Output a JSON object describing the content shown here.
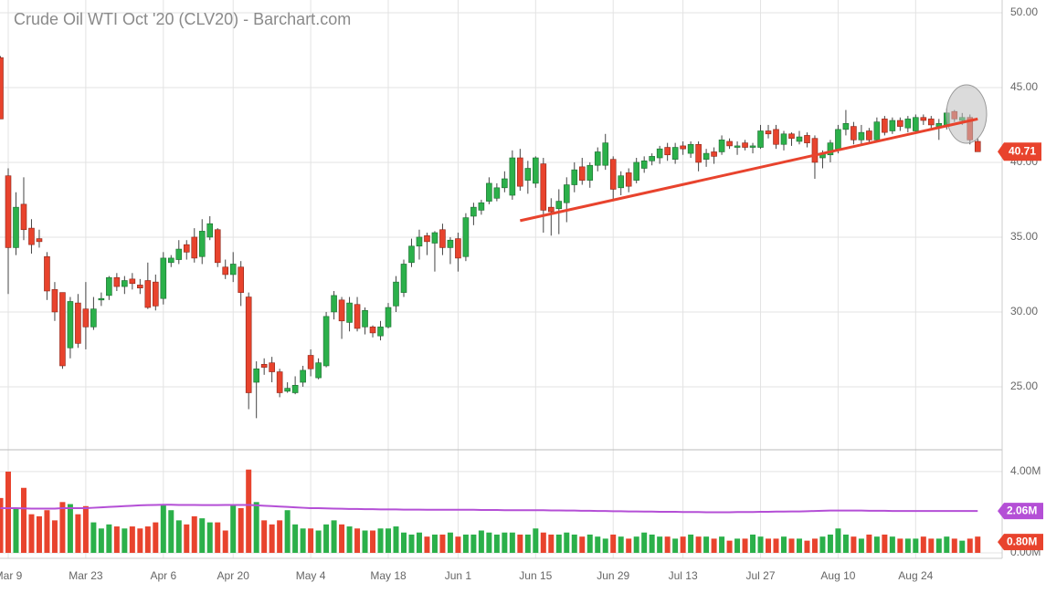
{
  "chart_data": {
    "type": "candlestick",
    "title": "Crude Oil WTI Oct '20 (CLV20) - Barchart.com",
    "categories": [
      null,
      "Mar 9",
      null,
      null,
      null,
      null,
      null,
      null,
      null,
      null,
      null,
      "Mar 23",
      null,
      null,
      null,
      null,
      null,
      null,
      null,
      null,
      null,
      "Apr 6",
      null,
      null,
      null,
      null,
      null,
      null,
      null,
      null,
      "Apr 20",
      null,
      null,
      null,
      null,
      null,
      null,
      null,
      null,
      null,
      "May 4",
      null,
      null,
      null,
      null,
      null,
      null,
      null,
      null,
      null,
      "May 18",
      null,
      null,
      null,
      null,
      null,
      null,
      null,
      null,
      "Jun 1",
      null,
      null,
      null,
      null,
      null,
      null,
      null,
      null,
      null,
      "Jun 15",
      null,
      null,
      null,
      null,
      null,
      null,
      null,
      null,
      null,
      "Jun 29",
      null,
      null,
      null,
      null,
      null,
      null,
      null,
      null,
      "Jul 13",
      null,
      null,
      null,
      null,
      null,
      null,
      null,
      null,
      null,
      "Jul 27",
      null,
      null,
      null,
      null,
      null,
      null,
      null,
      null,
      null,
      "Aug 10",
      null,
      null,
      null,
      null,
      null,
      null,
      null,
      null,
      null,
      "Aug 24",
      null,
      null,
      null,
      null,
      null,
      null,
      null,
      null
    ],
    "open": [
      47.0,
      39.1,
      34.3,
      37.2,
      35.6,
      34.9,
      33.7,
      31.5,
      31.3,
      27.6,
      30.6,
      30.2,
      29.0,
      30.8,
      31.1,
      32.3,
      31.7,
      32.2,
      31.8,
      32.1,
      32.0,
      30.9,
      33.3,
      33.5,
      34.5,
      35.0,
      33.7,
      35.0,
      35.5,
      33.0,
      32.5,
      33.0,
      31.0,
      25.3,
      26.5,
      26.6,
      26.0,
      24.7,
      24.6,
      25.3,
      27.1,
      25.6,
      26.4,
      30.0,
      30.8,
      29.3,
      30.5,
      29.0,
      29.0,
      28.4,
      29.0,
      30.4,
      31.3,
      33.3,
      34.4,
      35.1,
      34.6,
      35.5,
      34.3,
      34.9,
      33.7,
      36.4,
      36.8,
      37.4,
      37.6,
      38.3,
      37.8,
      40.3,
      38.8,
      38.6,
      39.9,
      37.0,
      36.9,
      37.3,
      38.5,
      39.7,
      38.8,
      39.8,
      39.8,
      40.2,
      38.3,
      39.3,
      38.8,
      39.6,
      40.1,
      40.3,
      41.0,
      40.2,
      41.1,
      40.6,
      41.2,
      40.2,
      40.7,
      40.7,
      41.4,
      41.0,
      41.3,
      41.0,
      41.0,
      42.1,
      42.2,
      41.2,
      41.9,
      41.4,
      41.8,
      41.6,
      40.3,
      40.5,
      40.9,
      42.2,
      42.4,
      41.5,
      42.1,
      41.5,
      42.9,
      42.1,
      42.8,
      42.3,
      42.1,
      43.0,
      42.9,
      42.4,
      42.4,
      43.4,
      42.8,
      43.0,
      41.4
    ],
    "high": [
      47.1,
      39.6,
      38.0,
      39.0,
      36.2,
      35.5,
      34.0,
      32.0,
      31.3,
      31.0,
      31.2,
      32.0,
      31.0,
      31.3,
      32.4,
      32.6,
      32.4,
      32.6,
      32.2,
      33.3,
      32.5,
      34.0,
      33.8,
      34.8,
      34.8,
      35.6,
      36.2,
      36.4,
      35.6,
      33.5,
      34.0,
      33.4,
      31.3,
      26.7,
      26.9,
      27.0,
      26.2,
      25.3,
      25.7,
      26.4,
      27.5,
      26.9,
      30.0,
      31.4,
      31.0,
      31.0,
      31.0,
      30.3,
      29.1,
      29.4,
      30.6,
      32.4,
      33.5,
      34.9,
      35.5,
      35.3,
      35.4,
      35.9,
      35.0,
      35.3,
      36.6,
      37.3,
      37.5,
      39.0,
      38.6,
      39.4,
      40.8,
      40.9,
      40.1,
      40.4,
      40.3,
      37.6,
      38.2,
      39.0,
      40.0,
      40.3,
      40.0,
      41.0,
      41.9,
      40.4,
      39.4,
      39.6,
      40.3,
      40.4,
      40.6,
      41.1,
      41.3,
      41.3,
      41.4,
      41.4,
      41.4,
      40.9,
      41.0,
      41.8,
      41.6,
      41.4,
      41.5,
      41.3,
      42.5,
      42.5,
      42.5,
      42.1,
      42.0,
      42.1,
      42.0,
      41.8,
      40.8,
      41.5,
      42.5,
      43.5,
      42.7,
      42.5,
      42.3,
      43.0,
      43.1,
      43.0,
      43.0,
      43.1,
      43.2,
      43.2,
      43.1,
      42.9,
      43.6,
      43.5,
      43.3,
      43.2,
      41.6
    ],
    "low": [
      42.9,
      31.2,
      33.8,
      34.8,
      33.9,
      34.3,
      30.8,
      29.4,
      26.2,
      26.9,
      27.6,
      27.5,
      28.8,
      30.4,
      30.8,
      31.4,
      31.2,
      31.5,
      31.2,
      30.2,
      30.1,
      30.5,
      33.0,
      33.2,
      33.5,
      33.3,
      33.2,
      34.8,
      33.0,
      32.2,
      32.0,
      30.4,
      23.5,
      22.9,
      25.8,
      25.3,
      24.3,
      24.6,
      24.5,
      25.0,
      25.7,
      25.5,
      26.3,
      29.5,
      28.2,
      28.7,
      28.7,
      28.5,
      28.3,
      28.1,
      28.9,
      30.0,
      31.0,
      33.0,
      33.5,
      33.8,
      32.7,
      33.8,
      33.2,
      32.7,
      33.4,
      35.8,
      36.5,
      37.2,
      37.4,
      38.0,
      37.5,
      38.1,
      37.9,
      38.3,
      35.3,
      35.1,
      35.2,
      36.0,
      38.0,
      38.5,
      38.3,
      39.4,
      39.5,
      37.4,
      37.8,
      38.0,
      38.6,
      39.3,
      39.8,
      39.9,
      40.1,
      39.9,
      40.5,
      40.3,
      39.4,
      39.7,
      39.9,
      40.5,
      40.9,
      40.5,
      40.8,
      40.6,
      40.9,
      41.6,
      40.9,
      40.8,
      41.1,
      41.2,
      41.0,
      38.9,
      39.6,
      40.0,
      40.6,
      41.8,
      41.2,
      41.2,
      41.3,
      41.4,
      41.8,
      41.9,
      42.1,
      42.0,
      42.0,
      42.5,
      42.3,
      41.5,
      42.2,
      42.7,
      42.5,
      41.2,
      40.7
    ],
    "close": [
      42.9,
      34.3,
      37.0,
      35.5,
      34.5,
      34.7,
      31.4,
      30.0,
      26.4,
      30.7,
      27.9,
      29.0,
      30.2,
      30.9,
      32.3,
      31.7,
      32.1,
      31.9,
      31.6,
      30.3,
      30.4,
      33.6,
      33.6,
      34.2,
      34.0,
      33.6,
      35.4,
      35.9,
      33.3,
      32.5,
      33.2,
      31.3,
      24.6,
      26.2,
      26.3,
      26.0,
      24.6,
      24.9,
      25.1,
      26.1,
      26.2,
      26.6,
      29.7,
      31.1,
      29.4,
      30.6,
      28.9,
      30.1,
      28.6,
      29.0,
      30.3,
      32.0,
      33.2,
      34.4,
      35.0,
      34.7,
      35.3,
      34.3,
      34.8,
      33.6,
      36.3,
      37.0,
      37.3,
      38.6,
      38.3,
      38.9,
      40.3,
      38.4,
      39.6,
      40.3,
      36.8,
      36.7,
      37.4,
      38.5,
      39.5,
      38.8,
      39.8,
      40.7,
      41.3,
      38.2,
      39.1,
      38.4,
      40.0,
      40.1,
      40.4,
      40.9,
      40.5,
      41.0,
      40.9,
      41.2,
      40.0,
      40.6,
      40.4,
      41.5,
      41.1,
      41.1,
      41.0,
      41.1,
      42.1,
      41.9,
      41.2,
      41.9,
      41.6,
      41.7,
      41.3,
      40.0,
      40.6,
      41.3,
      42.2,
      42.6,
      41.5,
      42.0,
      41.5,
      42.7,
      42.0,
      42.8,
      42.4,
      42.9,
      43.0,
      42.8,
      42.5,
      42.6,
      43.3,
      42.9,
      43.0,
      41.5,
      40.71
    ],
    "volume": [
      2.7,
      4.0,
      2.2,
      3.2,
      1.9,
      1.8,
      2.1,
      1.6,
      2.5,
      2.4,
      1.9,
      2.3,
      1.5,
      1.2,
      1.4,
      1.3,
      1.2,
      1.3,
      1.2,
      1.3,
      1.5,
      2.4,
      2.1,
      1.6,
      1.4,
      1.8,
      1.7,
      1.5,
      1.5,
      1.1,
      2.4,
      2.2,
      4.1,
      2.5,
      1.6,
      1.4,
      1.6,
      2.1,
      1.4,
      1.2,
      1.2,
      1.1,
      1.4,
      1.6,
      1.4,
      1.3,
      1.2,
      1.1,
      1.1,
      1.2,
      1.2,
      1.3,
      1.0,
      0.9,
      1.0,
      0.8,
      0.9,
      0.9,
      1.0,
      0.8,
      0.9,
      0.9,
      1.1,
      1.0,
      0.9,
      1.0,
      1.0,
      0.9,
      0.9,
      1.2,
      1.0,
      0.9,
      0.9,
      1.0,
      0.9,
      0.8,
      0.9,
      0.8,
      0.7,
      0.9,
      0.8,
      0.7,
      0.8,
      1.0,
      0.9,
      0.8,
      0.8,
      0.7,
      0.8,
      0.9,
      0.8,
      0.8,
      0.7,
      0.8,
      0.6,
      0.7,
      0.7,
      0.9,
      0.8,
      0.7,
      0.7,
      0.8,
      0.7,
      0.7,
      0.6,
      0.7,
      0.8,
      0.9,
      1.2,
      0.9,
      0.8,
      0.7,
      0.9,
      0.8,
      0.9,
      0.8,
      0.7,
      0.7,
      0.7,
      0.8,
      0.7,
      0.7,
      0.8,
      0.7,
      0.6,
      0.7,
      0.8
    ],
    "volume_last_label": "0.80M",
    "volume_ma": [
      2.2,
      2.2,
      2.2,
      2.19,
      2.18,
      2.18,
      2.18,
      2.18,
      2.2,
      2.2,
      2.2,
      2.2,
      2.22,
      2.24,
      2.26,
      2.28,
      2.3,
      2.32,
      2.34,
      2.35,
      2.36,
      2.37,
      2.37,
      2.36,
      2.36,
      2.36,
      2.35,
      2.35,
      2.35,
      2.36,
      2.36,
      2.36,
      2.36,
      2.34,
      2.32,
      2.3,
      2.28,
      2.26,
      2.24,
      2.22,
      2.2,
      2.2,
      2.19,
      2.18,
      2.17,
      2.16,
      2.16,
      2.15,
      2.15,
      2.14,
      2.14,
      2.14,
      2.13,
      2.13,
      2.13,
      2.12,
      2.12,
      2.12,
      2.12,
      2.12,
      2.12,
      2.12,
      2.11,
      2.11,
      2.11,
      2.1,
      2.1,
      2.1,
      2.1,
      2.1,
      2.1,
      2.09,
      2.09,
      2.08,
      2.08,
      2.07,
      2.07,
      2.06,
      2.06,
      2.05,
      2.05,
      2.04,
      2.04,
      2.03,
      2.03,
      2.02,
      2.02,
      2.02,
      2.01,
      2.01,
      2.01,
      2.0,
      2.0,
      2.0,
      2.0,
      2.01,
      2.01,
      2.01,
      2.02,
      2.02,
      2.03,
      2.03,
      2.04,
      2.04,
      2.05,
      2.06,
      2.07,
      2.08,
      2.08,
      2.08,
      2.08,
      2.08,
      2.07,
      2.07,
      2.07,
      2.06,
      2.06,
      2.06,
      2.06,
      2.06,
      2.06,
      2.06,
      2.06,
      2.06,
      2.06,
      2.06,
      2.06
    ],
    "volume_ma_last_label": "2.06M",
    "up_color": "#2bb04a",
    "down_color": "#e8432d",
    "ma_color": "#b44fd6",
    "ylim": [
      20.85,
      50.85
    ],
    "yticks": [
      {
        "value": 25,
        "label": "25.00"
      },
      {
        "value": 30,
        "label": "30.00"
      },
      {
        "value": 35,
        "label": "35.00"
      },
      {
        "value": 40,
        "label": "40.00"
      },
      {
        "value": 45,
        "label": "45.00"
      },
      {
        "value": 50,
        "label": "50.00"
      }
    ],
    "volume_ylim": [
      -0.27,
      5.03
    ],
    "volume_yticks": [
      {
        "value": 0,
        "label": "0.00M"
      },
      {
        "value": 4,
        "label": "4.00M"
      }
    ],
    "trendline": {
      "color": "#e8432d",
      "points": [
        {
          "index": 67,
          "value": 36.1
        },
        {
          "index": 126,
          "value": 42.9
        }
      ]
    },
    "grid": true
  }
}
